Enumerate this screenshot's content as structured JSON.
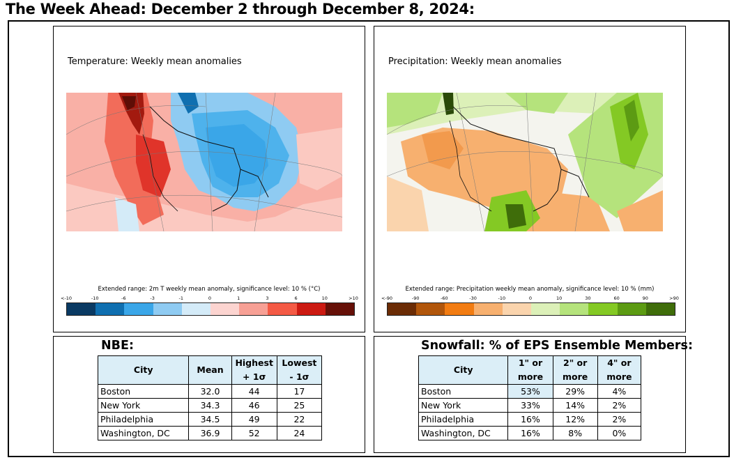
{
  "page_title": "The Week Ahead: December 2 through December 8, 2024:",
  "temperature_map": {
    "caption": "Temperature: Weekly mean anomalies",
    "legend_caption": "Extended range: 2m T weekly mean anomaly, significance level: 10 % (°C)",
    "ticks": [
      "<-10",
      "-10",
      "-6",
      "-3",
      "-1",
      "0",
      "1",
      "3",
      "6",
      "10",
      ">10"
    ],
    "colors": [
      "#0a3a63",
      "#0f6fb0",
      "#3aa6e8",
      "#8fcbf2",
      "#d4ebf8",
      "#fcd4d0",
      "#f7a095",
      "#f45a45",
      "#cc1a12",
      "#661008"
    ]
  },
  "precipitation_map": {
    "caption": "Precipitation: Weekly mean anomalies",
    "legend_caption": "Extended range: Precipitation weekly mean anomaly, significance level: 10 % (mm)",
    "ticks": [
      "<-90",
      "-90",
      "-60",
      "-30",
      "-10",
      "0",
      "10",
      "30",
      "60",
      "90",
      ">90"
    ],
    "colors": [
      "#6b2c05",
      "#b1560b",
      "#f27c12",
      "#f7b06f",
      "#fad4ad",
      "#dcf0b8",
      "#b5e37c",
      "#84c924",
      "#5c9b13",
      "#3f6d0a"
    ]
  },
  "nbe": {
    "title": "NBE:",
    "headers": [
      "City",
      "Mean",
      "Highest + 1σ",
      "Lowest - 1σ"
    ],
    "rows": [
      [
        "Boston",
        "32.0",
        "44",
        "17"
      ],
      [
        "New York",
        "34.3",
        "46",
        "25"
      ],
      [
        "Philadelphia",
        "34.5",
        "49",
        "22"
      ],
      [
        "Washington, DC",
        "36.9",
        "52",
        "24"
      ]
    ]
  },
  "snowfall": {
    "title": "Snowfall: % of EPS Ensemble Members:",
    "headers": [
      "City",
      "1\" or more",
      "2\" or more",
      "4\" or more"
    ],
    "rows": [
      [
        "Boston",
        "53%",
        "29%",
        "4%"
      ],
      [
        "New York",
        "33%",
        "14%",
        "2%"
      ],
      [
        "Philadelphia",
        "16%",
        "12%",
        "2%"
      ],
      [
        "Washington, DC",
        "16%",
        "8%",
        "0%"
      ]
    ]
  }
}
